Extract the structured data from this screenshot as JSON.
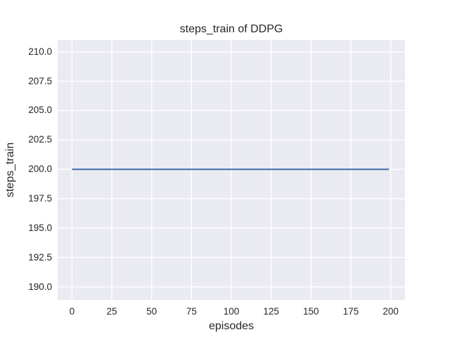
{
  "chart_data": {
    "type": "line",
    "title": "steps_train of DDPG",
    "xlabel": "episodes",
    "ylabel": "steps_train",
    "xlim": [
      -9,
      209
    ],
    "ylim": [
      188.9,
      211.0
    ],
    "grid": true,
    "legend": "none",
    "x_ticks": [
      {
        "value": 0,
        "label": "0"
      },
      {
        "value": 25,
        "label": "25"
      },
      {
        "value": 50,
        "label": "50"
      },
      {
        "value": 75,
        "label": "75"
      },
      {
        "value": 100,
        "label": "100"
      },
      {
        "value": 125,
        "label": "125"
      },
      {
        "value": 150,
        "label": "150"
      },
      {
        "value": 175,
        "label": "175"
      },
      {
        "value": 200,
        "label": "200"
      }
    ],
    "y_ticks": [
      {
        "value": 190.0,
        "label": "190.0"
      },
      {
        "value": 192.5,
        "label": "192.5"
      },
      {
        "value": 195.0,
        "label": "195.0"
      },
      {
        "value": 197.5,
        "label": "197.5"
      },
      {
        "value": 200.0,
        "label": "200.0"
      },
      {
        "value": 202.5,
        "label": "202.5"
      },
      {
        "value": 205.0,
        "label": "205.0"
      },
      {
        "value": 207.5,
        "label": "207.5"
      },
      {
        "value": 210.0,
        "label": "210.0"
      }
    ],
    "series": [
      {
        "name": "steps_train",
        "color": "#4C72B0",
        "linewidth": 2.2,
        "x": [
          0,
          199
        ],
        "y": [
          200,
          200
        ]
      }
    ],
    "style": {
      "plot_background": "#EAEAF2",
      "grid_color": "#FFFFFF",
      "grid_linewidth": 1.4,
      "text_color": "#262626",
      "figure_background": "#FFFFFF"
    }
  }
}
